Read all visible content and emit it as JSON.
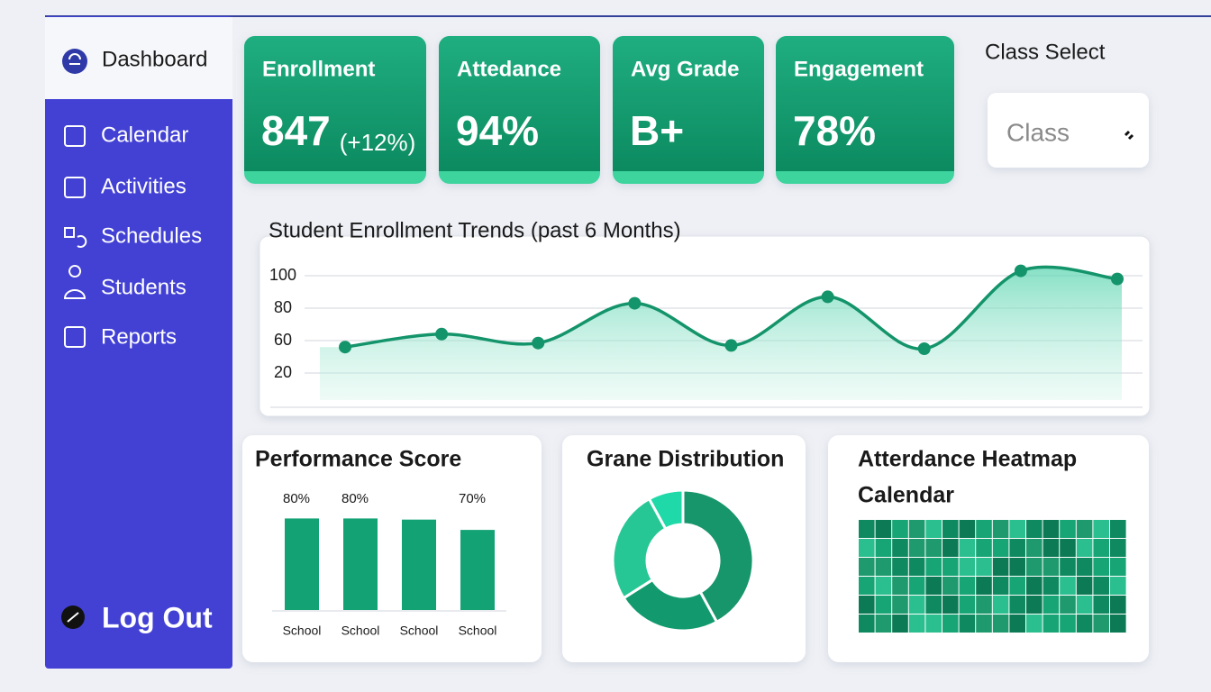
{
  "sidebar": {
    "header": "Dashboard",
    "items": [
      "Calendar",
      "Activities",
      "Schedules",
      "Students",
      "Reports"
    ],
    "logout": "Log Out"
  },
  "kpis": [
    {
      "label": "Enrollment",
      "value": "847",
      "change": "(+12%)"
    },
    {
      "label": "Attedance",
      "value": "94%"
    },
    {
      "label": "Avg Grade",
      "value": "B+"
    },
    {
      "label": "Engagement",
      "value": "78%"
    }
  ],
  "class_select": {
    "label": "Class Select",
    "placeholder": "Class"
  },
  "chart_data": [
    {
      "type": "line",
      "title": "Student Enrollment Trends (past 6 Months)",
      "categories": [
        null,
        null,
        null,
        null,
        null,
        null,
        null,
        null,
        null
      ],
      "values": [
        52,
        64,
        57,
        83,
        54,
        87,
        50,
        103,
        98
      ],
      "color": "#14946a",
      "ylim": [
        0,
        105
      ],
      "yticks": [
        100,
        80,
        60,
        20
      ],
      "grid": true
    },
    {
      "type": "bar",
      "title": "Performance Score",
      "categories": [
        "School",
        "School",
        "School",
        "School"
      ],
      "values": [
        80,
        80,
        79,
        70
      ],
      "value_labels": [
        "80%",
        "80%",
        null,
        "70%"
      ],
      "color": "#13a274",
      "ylim": [
        0,
        100
      ]
    },
    {
      "type": "donut",
      "title": "Grane Distribution",
      "values": [
        42,
        24,
        26,
        8
      ],
      "colors": [
        "#17956b",
        "#129a6e",
        "#27c795",
        "#1fd9a8"
      ]
    }
  ],
  "heatmap": {
    "title_lines": [
      "Atterdance Heatmap",
      "Calendar"
    ]
  }
}
